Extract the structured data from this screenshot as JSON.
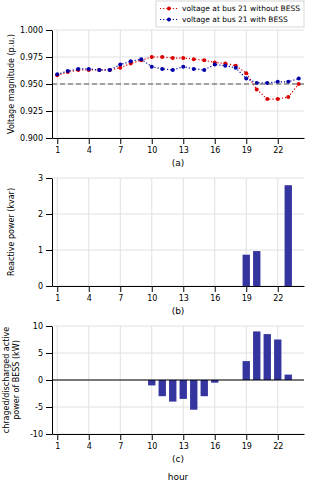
{
  "chart_data": [
    {
      "type": "line",
      "x_label": "(a)",
      "y_label": "Voltage magnitude (p.u.)",
      "x": [
        1,
        2,
        3,
        4,
        5,
        6,
        7,
        8,
        9,
        10,
        11,
        12,
        13,
        14,
        15,
        16,
        17,
        18,
        19,
        20,
        21,
        22,
        23,
        24
      ],
      "series": [
        {
          "name": "voltage at bus 21 without BESS",
          "color": "#dd0000",
          "line_style": "dotted",
          "marker": "circle",
          "values": [
            0.958,
            0.961,
            0.963,
            0.963,
            0.963,
            0.963,
            0.965,
            0.969,
            0.972,
            0.975,
            0.975,
            0.974,
            0.974,
            0.973,
            0.972,
            0.97,
            0.969,
            0.967,
            0.96,
            0.945,
            0.936,
            0.936,
            0.938,
            0.95
          ]
        },
        {
          "name": "voltage at bus 21 with BESS",
          "color": "#0000aa",
          "line_style": "dotted",
          "marker": "circle",
          "values": [
            0.959,
            0.962,
            0.964,
            0.964,
            0.963,
            0.963,
            0.968,
            0.971,
            0.973,
            0.966,
            0.964,
            0.963,
            0.966,
            0.964,
            0.963,
            0.968,
            0.967,
            0.965,
            0.955,
            0.951,
            0.951,
            0.952,
            0.952,
            0.955
          ]
        }
      ],
      "reference_line": {
        "value": 0.95,
        "color": "#555555",
        "line_style": "dashed"
      },
      "xlim": [
        0.5,
        24.5
      ],
      "xticks": [
        1,
        4,
        7,
        10,
        13,
        16,
        19,
        22
      ],
      "ylim": [
        0.9,
        1.0
      ],
      "yticks": [
        {
          "value": 0.9,
          "label": "0.900"
        },
        0.925,
        {
          "value": 0.95,
          "label": "0.950"
        },
        0.975,
        {
          "value": 1.0,
          "label": "1.000"
        }
      ],
      "grid": true,
      "legend": "upper right"
    },
    {
      "type": "bar",
      "x_label": "(b)",
      "y_label": "Reactive power (kvar)",
      "x": [
        1,
        2,
        3,
        4,
        5,
        6,
        7,
        8,
        9,
        10,
        11,
        12,
        13,
        14,
        15,
        16,
        17,
        18,
        19,
        20,
        21,
        22,
        23,
        24
      ],
      "values": [
        0,
        0,
        0,
        0,
        0,
        0,
        0,
        0,
        0,
        0,
        0,
        0,
        0,
        0,
        0,
        0,
        0,
        0,
        0.87,
        0.97,
        0,
        0,
        2.8,
        0
      ],
      "color": "#3535a0",
      "xlim": [
        0.5,
        24.5
      ],
      "xticks": [
        1,
        4,
        7,
        10,
        13,
        16,
        19,
        22
      ],
      "ylim": [
        0,
        3
      ],
      "yticks": [
        0,
        1,
        2,
        3
      ],
      "grid": true
    },
    {
      "type": "bar",
      "x_label": "(c)",
      "y_label": "chraged/discharged active\npower of BESS (kW)",
      "annotations": [
        "hour"
      ],
      "x": [
        1,
        2,
        3,
        4,
        5,
        6,
        7,
        8,
        9,
        10,
        11,
        12,
        13,
        14,
        15,
        16,
        17,
        18,
        19,
        20,
        21,
        22,
        23,
        24
      ],
      "values": [
        0,
        0,
        0,
        0,
        0,
        0,
        0,
        0,
        0,
        -1.0,
        -3.0,
        -4.0,
        -3.5,
        -5.5,
        -3.0,
        -0.5,
        0,
        0,
        3.5,
        9.0,
        8.5,
        7.5,
        1.0,
        0
      ],
      "color": "#3535a0",
      "reference_line": {
        "value": 0,
        "color": "#000000",
        "line_style": "solid"
      },
      "xlim": [
        0.5,
        24.5
      ],
      "xticks": [
        1,
        4,
        7,
        10,
        13,
        16,
        19,
        22
      ],
      "ylim": [
        -10,
        10
      ],
      "yticks": [
        -10,
        -5,
        0,
        5,
        10
      ],
      "grid": true
    }
  ]
}
